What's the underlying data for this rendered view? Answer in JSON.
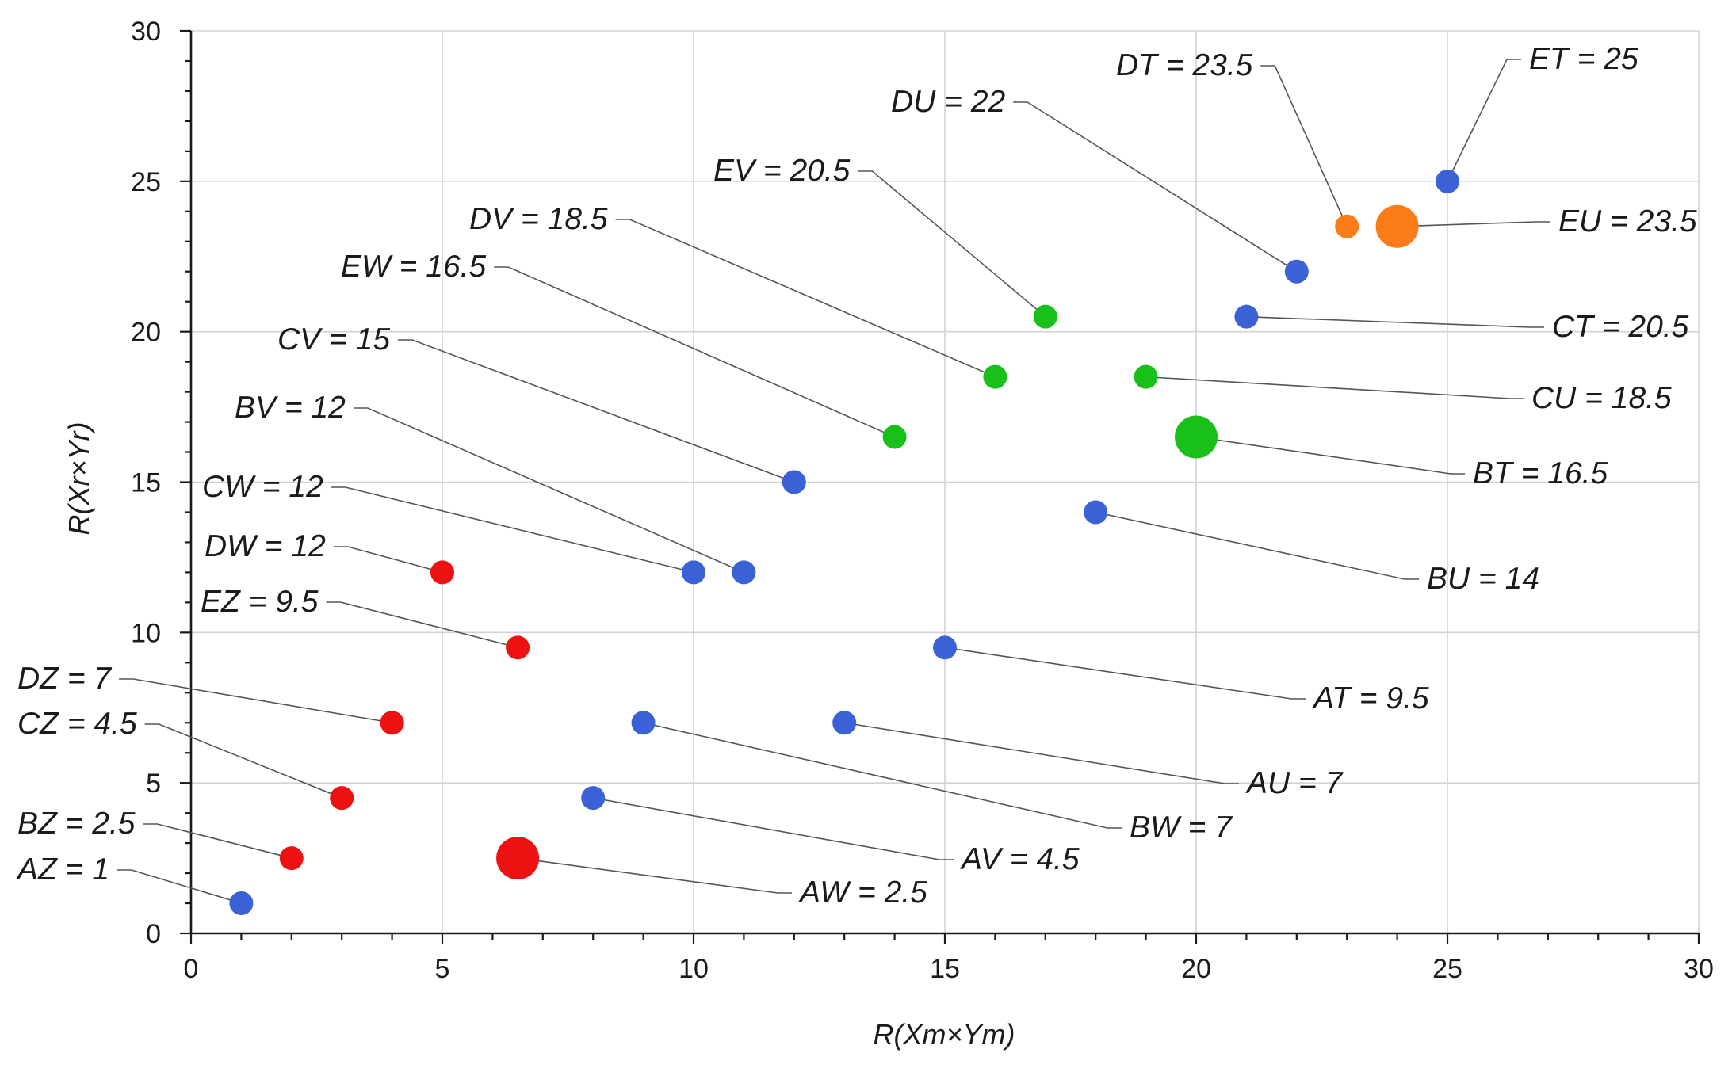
{
  "chart_data": {
    "type": "scatter",
    "title": "",
    "xlabel": "R(Xm×Ym)",
    "ylabel": "R(Xr×Yr)",
    "xlim": [
      0,
      30
    ],
    "ylim": [
      0,
      30
    ],
    "x_ticks": [
      0,
      5,
      10,
      15,
      20,
      25,
      30
    ],
    "y_ticks": [
      0,
      5,
      10,
      15,
      20,
      25,
      30
    ],
    "grid": true,
    "colors": {
      "blue": "#3a62d6",
      "red": "#ee1111",
      "green": "#19c019",
      "orange": "#fa7b17"
    },
    "points": [
      {
        "name": "AZ",
        "label": "AZ = 1",
        "x": 1,
        "y": 1,
        "color": "blue",
        "size": "small",
        "anchor": "left"
      },
      {
        "name": "BZ",
        "label": "BZ = 2.5",
        "x": 2,
        "y": 2.5,
        "color": "red",
        "size": "small",
        "anchor": "left"
      },
      {
        "name": "CZ",
        "label": "CZ = 4.5",
        "x": 3,
        "y": 4.5,
        "color": "red",
        "size": "small",
        "anchor": "left"
      },
      {
        "name": "DZ",
        "label": "DZ = 7",
        "x": 4,
        "y": 7,
        "color": "red",
        "size": "small",
        "anchor": "left"
      },
      {
        "name": "EZ",
        "label": "EZ = 9.5",
        "x": 6.5,
        "y": 9.5,
        "color": "red",
        "size": "small",
        "anchor": "left"
      },
      {
        "name": "DW",
        "label": "DW = 12",
        "x": 5,
        "y": 12,
        "color": "red",
        "size": "small",
        "anchor": "left"
      },
      {
        "name": "CW",
        "label": "CW = 12",
        "x": 10,
        "y": 12,
        "color": "blue",
        "size": "small",
        "anchor": "left"
      },
      {
        "name": "BV",
        "label": "BV = 12",
        "x": 11,
        "y": 12,
        "color": "blue",
        "size": "small",
        "anchor": "left"
      },
      {
        "name": "CV",
        "label": "CV = 15",
        "x": 12,
        "y": 15,
        "color": "blue",
        "size": "small",
        "anchor": "left"
      },
      {
        "name": "EW",
        "label": "EW = 16.5",
        "x": 14,
        "y": 16.5,
        "color": "green",
        "size": "small",
        "anchor": "left"
      },
      {
        "name": "DV",
        "label": "DV = 18.5",
        "x": 16,
        "y": 18.5,
        "color": "green",
        "size": "small",
        "anchor": "left"
      },
      {
        "name": "EV",
        "label": "EV = 20.5",
        "x": 17,
        "y": 20.5,
        "color": "green",
        "size": "small",
        "anchor": "left"
      },
      {
        "name": "DU",
        "label": "DU = 22",
        "x": 22,
        "y": 22,
        "color": "blue",
        "size": "small",
        "anchor": "left"
      },
      {
        "name": "DT",
        "label": "DT = 23.5",
        "x": 23,
        "y": 23.5,
        "color": "orange",
        "size": "small",
        "anchor": "left"
      },
      {
        "name": "ET",
        "label": "ET = 25",
        "x": 25,
        "y": 25,
        "color": "blue",
        "size": "small",
        "anchor": "right"
      },
      {
        "name": "EU",
        "label": "EU = 23.5",
        "x": 24,
        "y": 23.5,
        "color": "orange",
        "size": "large",
        "anchor": "right"
      },
      {
        "name": "CT",
        "label": "CT = 20.5",
        "x": 21,
        "y": 20.5,
        "color": "blue",
        "size": "small",
        "anchor": "right"
      },
      {
        "name": "CU",
        "label": "CU = 18.5",
        "x": 19,
        "y": 18.5,
        "color": "green",
        "size": "small",
        "anchor": "right"
      },
      {
        "name": "BT",
        "label": "BT = 16.5",
        "x": 20,
        "y": 16.5,
        "color": "green",
        "size": "large",
        "anchor": "right"
      },
      {
        "name": "BU",
        "label": "BU = 14",
        "x": 18,
        "y": 14,
        "color": "blue",
        "size": "small",
        "anchor": "right"
      },
      {
        "name": "AT",
        "label": "AT = 9.5",
        "x": 15,
        "y": 9.5,
        "color": "blue",
        "size": "small",
        "anchor": "right"
      },
      {
        "name": "AU",
        "label": "AU = 7",
        "x": 13,
        "y": 7,
        "color": "blue",
        "size": "small",
        "anchor": "right"
      },
      {
        "name": "BW",
        "label": "BW = 7",
        "x": 9,
        "y": 7,
        "color": "blue",
        "size": "small",
        "anchor": "right"
      },
      {
        "name": "AV",
        "label": "AV = 4.5",
        "x": 8,
        "y": 4.5,
        "color": "blue",
        "size": "small",
        "anchor": "right"
      },
      {
        "name": "AW",
        "label": "AW = 2.5",
        "x": 6.5,
        "y": 2.5,
        "color": "red",
        "size": "large",
        "anchor": "right"
      }
    ]
  }
}
